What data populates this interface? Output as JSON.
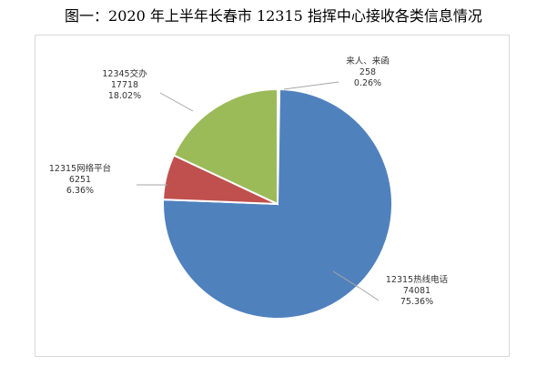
{
  "figure_title": "图一：2020 年上半年长春市 12315 指挥中心接收各类信息情况",
  "chart_data": {
    "type": "pie",
    "title": "图一：2020 年上半年长春市 12315 指挥中心接收各类信息情况",
    "legend": "none",
    "slices": [
      {
        "name": "来人、来函",
        "value": 258,
        "percent_label": "0.26%",
        "color": "#4f81bd"
      },
      {
        "name": "12315热线电话",
        "value": 74081,
        "percent_label": "75.36%",
        "color": "#4f81bd"
      },
      {
        "name": "12315网络平台",
        "value": 6251,
        "percent_label": "6.36%",
        "color": "#c0504d"
      },
      {
        "name": "12345交办",
        "value": 17718,
        "percent_label": "18.02%",
        "color": "#9bbb59"
      }
    ]
  }
}
